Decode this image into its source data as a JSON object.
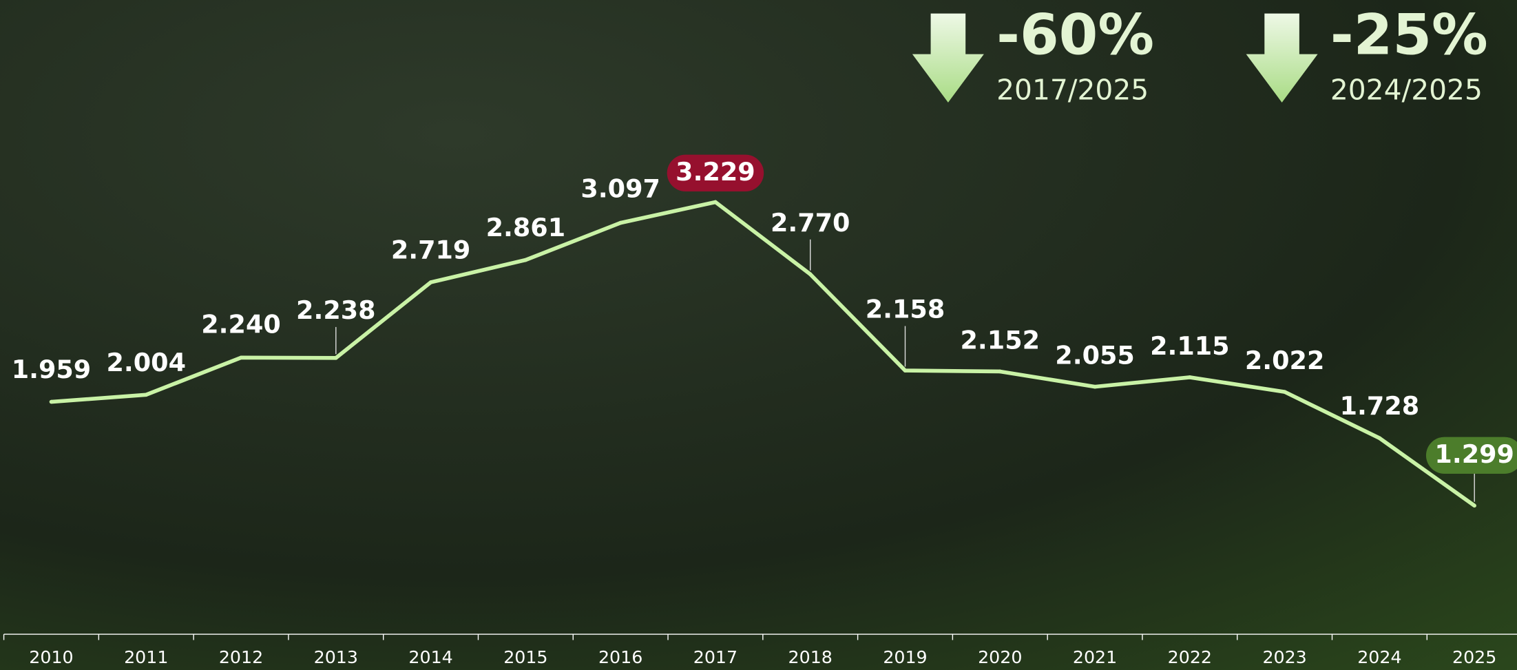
{
  "chart_data": {
    "type": "line",
    "categories": [
      "2010",
      "2011",
      "2012",
      "2013",
      "2014",
      "2015",
      "2016",
      "2017",
      "2018",
      "2019",
      "2020",
      "2021",
      "2022",
      "2023",
      "2024",
      "2025"
    ],
    "values": [
      1959,
      2004,
      2240,
      2238,
      2719,
      2861,
      3097,
      3229,
      2770,
      2158,
      2152,
      2055,
      2115,
      2022,
      1728,
      1299
    ],
    "value_labels": [
      "1.959",
      "2.004",
      "2.240",
      "2.238",
      "2.719",
      "2.861",
      "3.097",
      "3.229",
      "2.770",
      "2.158",
      "2.152",
      "2.055",
      "2.115",
      "2.022",
      "1.728",
      "1.299"
    ],
    "color": "#c9f2a6",
    "annotations": [
      {
        "text": "-60%",
        "period": "2017/2025"
      },
      {
        "text": "-25%",
        "period": "2024/2025"
      }
    ]
  }
}
